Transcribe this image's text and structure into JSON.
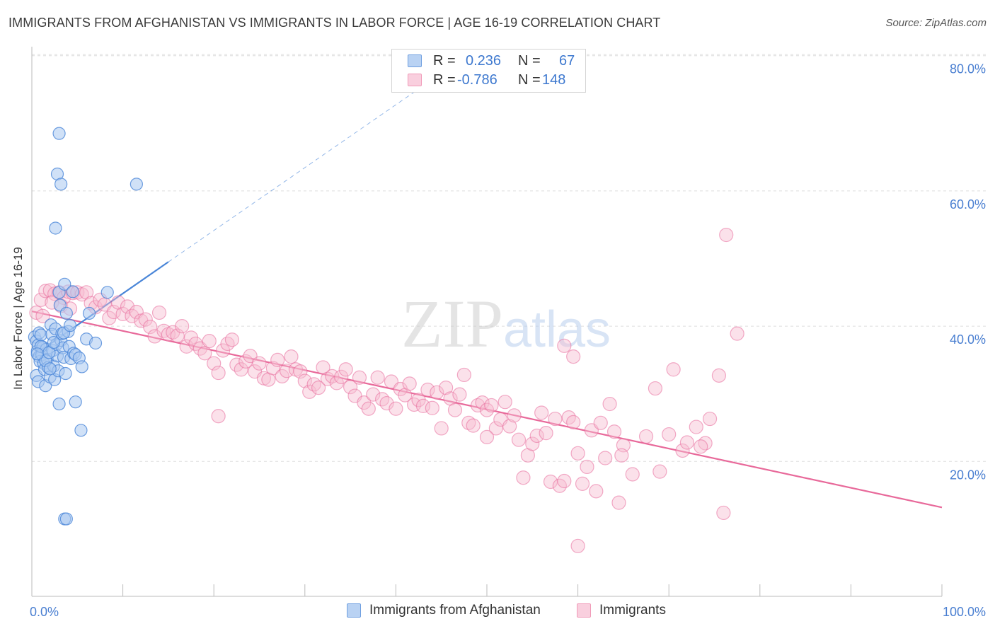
{
  "title": "IMMIGRANTS FROM AFGHANISTAN VS IMMIGRANTS IN LABOR FORCE | AGE 16-19 CORRELATION CHART",
  "source": "Source: ZipAtlas.com",
  "watermark": "ZIPatlas",
  "colors": {
    "blue": "#4a86d8",
    "blue_fill": "#a9c8f0",
    "pink": "#e8699a",
    "pink_fill": "#f6bcd0",
    "axis_text": "#4a7fd1",
    "grid": "#dddddd"
  },
  "legend_top": {
    "rows": [
      {
        "r_label": "R =",
        "r_value": "0.236",
        "n_label": "N =",
        "n_value": "67"
      },
      {
        "r_label": "R =",
        "r_value": "-0.786",
        "n_label": "N =",
        "n_value": "148"
      }
    ]
  },
  "legend_bottom": {
    "items": [
      "Immigrants from Afghanistan",
      "Immigrants"
    ]
  },
  "chart_data": {
    "type": "scatter",
    "title": "IMMIGRANTS FROM AFGHANISTAN VS IMMIGRANTS IN LABOR FORCE | AGE 16-19 CORRELATION CHART",
    "xlabel": "",
    "ylabel": "In Labor Force | Age 16-19",
    "xlim": [
      0,
      100
    ],
    "ylim": [
      0,
      82
    ],
    "x_tick_labels": [
      "0.0%",
      "100.0%"
    ],
    "y_ticks": [
      20,
      40,
      60,
      80
    ],
    "y_tick_labels": [
      "20.0%",
      "40.0%",
      "60.0%",
      "80.0%"
    ],
    "grid": true,
    "legend_position": "top-center",
    "series": [
      {
        "name": "Immigrants from Afghanistan",
        "color": "#4a86d8",
        "R": 0.236,
        "N": 67,
        "trend": {
          "x0": 0.0,
          "y0": 35.5,
          "x1": 15.0,
          "y1": 49.5,
          "dashed_to_x": 43.5,
          "dashed_to_y": 76.0
        },
        "points": [
          [
            0.3,
            38.4
          ],
          [
            0.5,
            37.8
          ],
          [
            0.6,
            36.3
          ],
          [
            0.7,
            37.2
          ],
          [
            0.8,
            35.5
          ],
          [
            0.9,
            34.8
          ],
          [
            0.5,
            32.7
          ],
          [
            0.7,
            31.8
          ],
          [
            0.8,
            39.0
          ],
          [
            1.0,
            38.7
          ],
          [
            1.2,
            36.9
          ],
          [
            1.1,
            35.8
          ],
          [
            1.3,
            34.5
          ],
          [
            1.4,
            33.6
          ],
          [
            1.5,
            31.2
          ],
          [
            1.6,
            36.6
          ],
          [
            1.7,
            35.1
          ],
          [
            1.8,
            33.9
          ],
          [
            2.0,
            32.5
          ],
          [
            2.1,
            40.2
          ],
          [
            2.2,
            38.8
          ],
          [
            2.3,
            36.4
          ],
          [
            2.4,
            34.1
          ],
          [
            2.5,
            32.1
          ],
          [
            2.6,
            39.6
          ],
          [
            2.7,
            37.3
          ],
          [
            2.8,
            35.6
          ],
          [
            2.9,
            33.4
          ],
          [
            3.0,
            45.0
          ],
          [
            3.1,
            43.1
          ],
          [
            3.2,
            37.9
          ],
          [
            3.3,
            38.9
          ],
          [
            3.4,
            36.8
          ],
          [
            3.5,
            35.4
          ],
          [
            3.6,
            46.2
          ],
          [
            3.7,
            33.0
          ],
          [
            3.8,
            41.9
          ],
          [
            4.0,
            39.2
          ],
          [
            4.1,
            37.0
          ],
          [
            4.3,
            35.2
          ],
          [
            4.5,
            45.1
          ],
          [
            4.6,
            36.0
          ],
          [
            4.8,
            35.8
          ],
          [
            5.2,
            35.3
          ],
          [
            5.5,
            34.0
          ],
          [
            6.0,
            38.1
          ],
          [
            6.3,
            41.9
          ],
          [
            7.0,
            37.5
          ],
          [
            8.3,
            45.0
          ],
          [
            3.0,
            68.5
          ],
          [
            2.8,
            62.5
          ],
          [
            3.2,
            61.0
          ],
          [
            11.5,
            61.0
          ],
          [
            2.6,
            54.5
          ],
          [
            3.6,
            11.5
          ],
          [
            3.8,
            11.5
          ],
          [
            3.0,
            28.5
          ],
          [
            4.8,
            28.8
          ],
          [
            5.4,
            24.6
          ],
          [
            1.0,
            37.0
          ],
          [
            1.5,
            34.9
          ],
          [
            2.0,
            33.7
          ],
          [
            0.6,
            35.9
          ],
          [
            1.9,
            36.1
          ],
          [
            2.4,
            37.6
          ],
          [
            3.5,
            39.0
          ],
          [
            4.2,
            40.1
          ]
        ]
      },
      {
        "name": "Immigrants",
        "color": "#e8699a",
        "R": -0.786,
        "N": 148,
        "trend": {
          "x0": 0.0,
          "y0": 42.2,
          "x1": 100.0,
          "y1": 13.2
        },
        "points": [
          [
            1.0,
            43.9
          ],
          [
            1.5,
            45.2
          ],
          [
            2.0,
            45.3
          ],
          [
            2.5,
            44.8
          ],
          [
            3.0,
            45.0
          ],
          [
            3.5,
            44.2
          ],
          [
            4.0,
            45.1
          ],
          [
            4.5,
            44.9
          ],
          [
            5.0,
            45.0
          ],
          [
            5.5,
            44.7
          ],
          [
            6.0,
            45.0
          ],
          [
            0.5,
            42.0
          ],
          [
            1.2,
            41.5
          ],
          [
            2.2,
            43.5
          ],
          [
            3.2,
            43.0
          ],
          [
            4.2,
            42.6
          ],
          [
            6.5,
            43.4
          ],
          [
            7.0,
            42.8
          ],
          [
            7.5,
            43.9
          ],
          [
            8.0,
            43.2
          ],
          [
            8.5,
            41.2
          ],
          [
            9.0,
            42.1
          ],
          [
            9.5,
            43.5
          ],
          [
            10.0,
            41.8
          ],
          [
            10.5,
            42.9
          ],
          [
            11.0,
            41.5
          ],
          [
            11.5,
            42.1
          ],
          [
            12.0,
            40.8
          ],
          [
            12.5,
            41.0
          ],
          [
            13.0,
            39.9
          ],
          [
            13.5,
            38.5
          ],
          [
            14.0,
            42.0
          ],
          [
            14.5,
            39.3
          ],
          [
            15.0,
            38.8
          ],
          [
            15.5,
            39.1
          ],
          [
            16.0,
            38.6
          ],
          [
            16.5,
            40.0
          ],
          [
            17.0,
            37.0
          ],
          [
            17.5,
            38.3
          ],
          [
            18.0,
            37.4
          ],
          [
            18.5,
            36.7
          ],
          [
            19.0,
            36.0
          ],
          [
            19.5,
            37.8
          ],
          [
            20.0,
            34.5
          ],
          [
            20.5,
            33.1
          ],
          [
            21.0,
            36.4
          ],
          [
            21.5,
            37.4
          ],
          [
            22.0,
            38.0
          ],
          [
            22.5,
            34.3
          ],
          [
            23.0,
            33.6
          ],
          [
            23.5,
            34.8
          ],
          [
            24.0,
            35.6
          ],
          [
            24.5,
            33.3
          ],
          [
            25.0,
            34.5
          ],
          [
            25.5,
            32.3
          ],
          [
            26.0,
            32.1
          ],
          [
            26.5,
            33.8
          ],
          [
            27.0,
            35.0
          ],
          [
            27.5,
            32.6
          ],
          [
            28.0,
            33.4
          ],
          [
            28.5,
            35.5
          ],
          [
            29.0,
            33.6
          ],
          [
            29.5,
            33.3
          ],
          [
            30.0,
            31.9
          ],
          [
            30.5,
            30.3
          ],
          [
            31.0,
            31.4
          ],
          [
            31.5,
            30.9
          ],
          [
            32.0,
            33.9
          ],
          [
            32.5,
            32.2
          ],
          [
            33.0,
            32.6
          ],
          [
            33.5,
            31.6
          ],
          [
            34.0,
            32.5
          ],
          [
            34.5,
            33.6
          ],
          [
            35.0,
            31.0
          ],
          [
            35.5,
            29.7
          ],
          [
            36.0,
            32.4
          ],
          [
            36.5,
            28.7
          ],
          [
            37.0,
            27.8
          ],
          [
            37.5,
            29.9
          ],
          [
            38.0,
            32.4
          ],
          [
            38.5,
            29.2
          ],
          [
            39.0,
            28.6
          ],
          [
            39.5,
            31.8
          ],
          [
            40.0,
            27.8
          ],
          [
            40.5,
            30.7
          ],
          [
            41.0,
            29.8
          ],
          [
            41.5,
            31.5
          ],
          [
            42.0,
            28.4
          ],
          [
            42.5,
            29.1
          ],
          [
            43.0,
            28.2
          ],
          [
            43.5,
            30.6
          ],
          [
            44.0,
            27.9
          ],
          [
            44.5,
            30.2
          ],
          [
            45.0,
            24.9
          ],
          [
            45.5,
            30.9
          ],
          [
            46.0,
            29.3
          ],
          [
            46.5,
            27.6
          ],
          [
            47.0,
            29.9
          ],
          [
            47.5,
            32.8
          ],
          [
            48.0,
            25.7
          ],
          [
            48.5,
            25.3
          ],
          [
            49.0,
            28.3
          ],
          [
            49.5,
            28.7
          ],
          [
            50.0,
            27.6
          ],
          [
            50.5,
            28.3
          ],
          [
            51.0,
            24.9
          ],
          [
            51.5,
            26.2
          ],
          [
            52.0,
            28.8
          ],
          [
            52.5,
            25.2
          ],
          [
            53.0,
            26.8
          ],
          [
            53.5,
            23.2
          ],
          [
            54.0,
            17.6
          ],
          [
            54.5,
            20.9
          ],
          [
            55.0,
            22.6
          ],
          [
            55.5,
            23.8
          ],
          [
            56.0,
            27.2
          ],
          [
            56.5,
            24.2
          ],
          [
            57.0,
            17.0
          ],
          [
            57.5,
            26.3
          ],
          [
            58.0,
            16.4
          ],
          [
            58.5,
            17.1
          ],
          [
            59.0,
            26.5
          ],
          [
            59.5,
            25.8
          ],
          [
            60.0,
            21.2
          ],
          [
            60.5,
            16.7
          ],
          [
            61.0,
            19.2
          ],
          [
            61.5,
            24.6
          ],
          [
            62.0,
            15.6
          ],
          [
            62.5,
            25.7
          ],
          [
            63.0,
            20.5
          ],
          [
            63.5,
            28.5
          ],
          [
            64.0,
            24.4
          ],
          [
            64.5,
            13.9
          ],
          [
            65.0,
            22.4
          ],
          [
            66.0,
            18.1
          ],
          [
            67.5,
            23.7
          ],
          [
            69.0,
            18.5
          ],
          [
            70.0,
            24.0
          ],
          [
            71.5,
            21.6
          ],
          [
            72.0,
            22.8
          ],
          [
            73.0,
            25.1
          ],
          [
            74.0,
            22.7
          ],
          [
            75.5,
            32.7
          ],
          [
            76.0,
            12.4
          ],
          [
            60.0,
            7.5
          ],
          [
            58.5,
            37.1
          ],
          [
            59.5,
            35.5
          ],
          [
            20.5,
            26.7
          ],
          [
            76.3,
            53.5
          ],
          [
            77.5,
            38.9
          ],
          [
            70.5,
            33.6
          ],
          [
            68.5,
            30.8
          ],
          [
            74.5,
            26.3
          ],
          [
            73.5,
            22.2
          ],
          [
            50.0,
            23.6
          ],
          [
            64.8,
            20.9
          ]
        ]
      }
    ]
  }
}
